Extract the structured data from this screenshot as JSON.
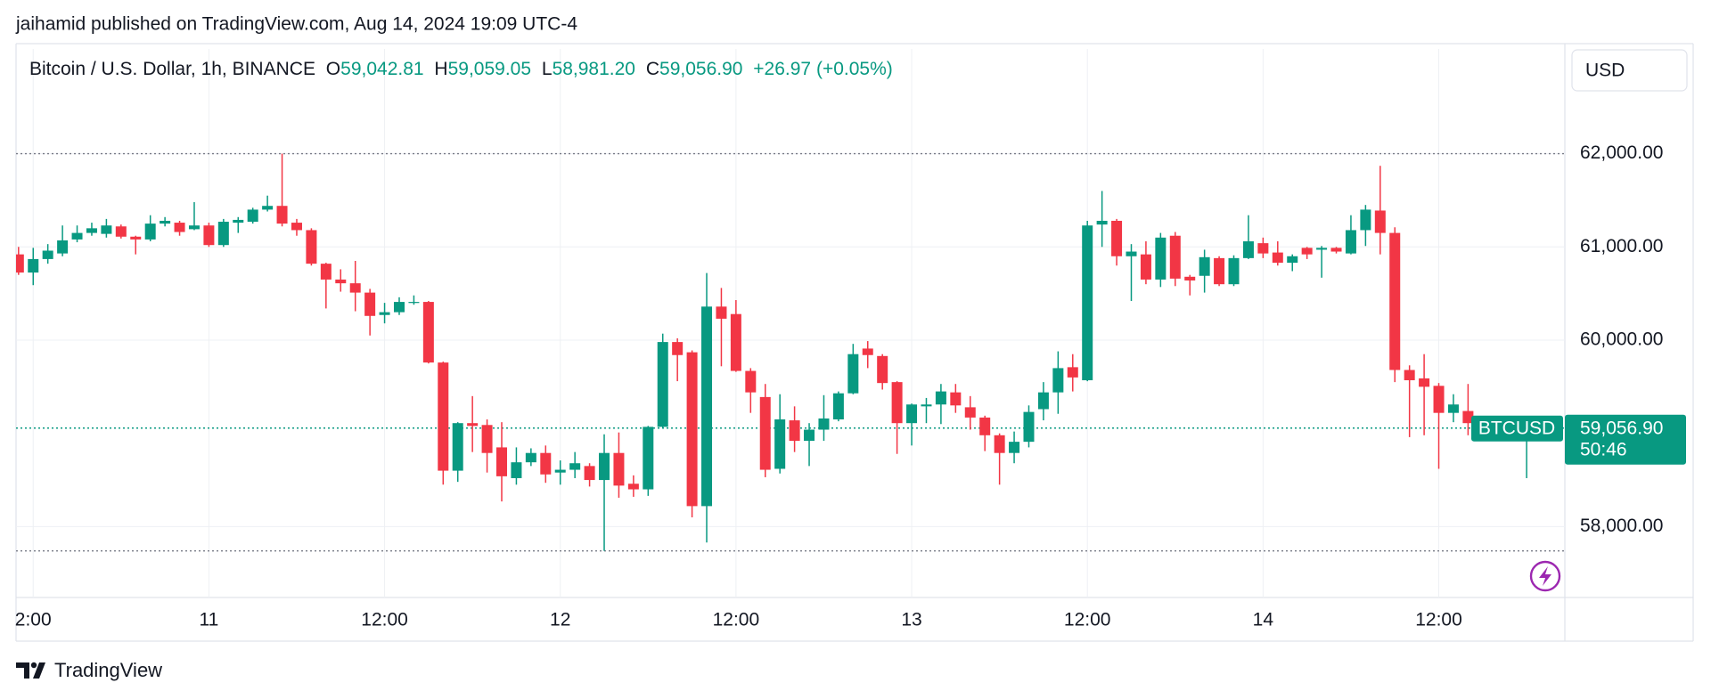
{
  "header": {
    "publisher": "jaihamid published on TradingView.com, Aug 14, 2024 19:09 UTC-4"
  },
  "legend": {
    "title": "Bitcoin / U.S. Dollar, 1h, BINANCE",
    "open_key": "O",
    "open": "59,042.81",
    "high_key": "H",
    "high": "59,059.05",
    "low_key": "L",
    "low": "58,981.20",
    "close_key": "C",
    "close": "59,056.90",
    "change": "+26.97 (+0.05%)"
  },
  "footer": {
    "brand": "TradingView"
  },
  "chart_data": {
    "type": "candlestick",
    "currency": "USD",
    "symbol": "BTCUSD",
    "countdown": "50:46",
    "up_color": "#089981",
    "down_color": "#f23645",
    "grid": true,
    "categories": [
      null,
      "2:00",
      null,
      null,
      null,
      null,
      null,
      null,
      null,
      null,
      null,
      null,
      null,
      "11",
      null,
      null,
      null,
      null,
      null,
      null,
      null,
      null,
      null,
      null,
      null,
      "12:00",
      null,
      null,
      null,
      null,
      null,
      null,
      null,
      null,
      null,
      null,
      null,
      "12",
      null,
      null,
      null,
      null,
      null,
      null,
      null,
      null,
      null,
      null,
      null,
      "12:00",
      null,
      null,
      null,
      null,
      null,
      null,
      null,
      null,
      null,
      null,
      null,
      "13",
      null,
      null,
      null,
      null,
      null,
      null,
      null,
      null,
      null,
      null,
      null,
      "12:00",
      null,
      null,
      null,
      null,
      null,
      null,
      null,
      null,
      null,
      null,
      null,
      "14",
      null,
      null,
      null,
      null,
      null,
      null,
      null,
      null,
      null,
      null,
      null,
      "12:00",
      null,
      null,
      null,
      null,
      null,
      null,
      null
    ],
    "open": [
      60920,
      60725,
      60870,
      60930,
      61080,
      61150,
      61140,
      61220,
      61110,
      61080,
      61250,
      61260,
      61190,
      61230,
      61020,
      61260,
      61270,
      61400,
      61440,
      61260,
      61180,
      60820,
      60650,
      60610,
      60510,
      60270,
      60300,
      60400,
      60410,
      59760,
      58600,
      59110,
      59090,
      58850,
      58520,
      58690,
      58790,
      58580,
      58610,
      58650,
      58500,
      58790,
      58460,
      58400,
      59070,
      59980,
      59870,
      58220,
      60360,
      60280,
      59670,
      59390,
      58620,
      59140,
      58920,
      59040,
      59150,
      59430,
      59910,
      59830,
      59550,
      59110,
      59290,
      59310,
      59440,
      59280,
      59170,
      58980,
      58790,
      58910,
      59260,
      59440,
      59710,
      59570,
      61240,
      61280,
      60900,
      60920,
      60650,
      61120,
      60680,
      60690,
      60880,
      60600,
      60880,
      61040,
      60940,
      60830,
      60990,
      60970,
      60990,
      60930,
      61180,
      61390,
      61150,
      59680,
      59590,
      59510,
      59220,
      59240,
      59120,
      59030,
      59050,
      59040,
      59042.81
    ],
    "high": [
      61000,
      60990,
      61030,
      61230,
      61230,
      61260,
      61300,
      61240,
      61120,
      61340,
      61320,
      61280,
      61480,
      61260,
      61300,
      61320,
      61420,
      61550,
      62000,
      61300,
      61200,
      60830,
      60760,
      60850,
      60550,
      60400,
      60460,
      60480,
      60420,
      59770,
      59120,
      59400,
      59150,
      59120,
      58850,
      58840,
      58870,
      58710,
      58800,
      58680,
      58990,
      59010,
      58550,
      59080,
      60070,
      60020,
      59890,
      60720,
      60560,
      60430,
      59700,
      59530,
      59420,
      59290,
      59110,
      59410,
      59450,
      59960,
      59990,
      59850,
      59560,
      59320,
      59380,
      59530,
      59530,
      59400,
      59190,
      59000,
      59020,
      59300,
      59550,
      59880,
      59850,
      61280,
      61600,
      61300,
      61030,
      61060,
      61150,
      61160,
      60700,
      60970,
      60900,
      60910,
      61340,
      61100,
      61060,
      60920,
      61000,
      61010,
      61000,
      61340,
      61450,
      61870,
      61210,
      59730,
      59850,
      59540,
      59420,
      59530,
      59150,
      59100,
      59080,
      59080,
      59059.05
    ],
    "low": [
      60700,
      60590,
      60820,
      60900,
      61050,
      61120,
      61100,
      61090,
      60920,
      61060,
      61220,
      61120,
      61180,
      61000,
      61000,
      61150,
      61250,
      61380,
      61220,
      61120,
      60800,
      60340,
      60520,
      60310,
      60050,
      60180,
      60270,
      60380,
      59750,
      58450,
      58480,
      58800,
      58580,
      58270,
      58450,
      58650,
      58470,
      58450,
      58520,
      58430,
      57740,
      58310,
      58320,
      58330,
      59060,
      59560,
      58100,
      57830,
      59720,
      59660,
      59220,
      58530,
      58570,
      58800,
      58650,
      58920,
      59130,
      59420,
      59700,
      59470,
      58780,
      58870,
      59110,
      59100,
      59220,
      59040,
      58810,
      58450,
      58680,
      58850,
      59140,
      59210,
      59450,
      59560,
      61000,
      60800,
      60420,
      60600,
      60570,
      60580,
      60480,
      60510,
      60580,
      60580,
      60870,
      60880,
      60800,
      60740,
      60870,
      60670,
      60930,
      60920,
      61010,
      60920,
      59550,
      58960,
      58980,
      58620,
      59120,
      58980,
      58940,
      58980,
      58980,
      58520,
      58981.2
    ],
    "close": [
      60725,
      60870,
      60960,
      61070,
      61150,
      61200,
      61230,
      61110,
      61080,
      61250,
      61280,
      61160,
      61230,
      61020,
      61270,
      61290,
      61400,
      61440,
      61250,
      61180,
      60820,
      60650,
      60610,
      60510,
      60260,
      60300,
      60410,
      60410,
      59760,
      58600,
      59110,
      59080,
      58790,
      58540,
      58690,
      58790,
      58560,
      58610,
      58680,
      58500,
      58790,
      58440,
      58400,
      59070,
      59980,
      59840,
      58220,
      60360,
      60230,
      59670,
      59440,
      58610,
      59150,
      58920,
      59040,
      59160,
      59430,
      59850,
      59840,
      59540,
      59110,
      59310,
      59310,
      59450,
      59300,
      59170,
      58980,
      58790,
      58910,
      59230,
      59440,
      59700,
      59600,
      61230,
      61280,
      60900,
      60950,
      60650,
      61100,
      60660,
      60640,
      60890,
      60600,
      60880,
      61060,
      60930,
      60830,
      60900,
      60920,
      60990,
      60950,
      61180,
      61400,
      61150,
      59680,
      59570,
      59500,
      59220,
      59310,
      59110,
      59090,
      59060,
      59040,
      59043,
      59056.9
    ],
    "ylim": [
      57240,
      63123
    ],
    "yticks": [
      {
        "value": 58000,
        "label": "58,000.00"
      },
      {
        "value": 60000,
        "label": "60,000.00"
      },
      {
        "value": 61000,
        "label": "61,000.00"
      },
      {
        "value": 62000,
        "label": "62,000.00"
      }
    ],
    "last_price": {
      "value": 59056.9,
      "label": "59,056.90"
    }
  }
}
